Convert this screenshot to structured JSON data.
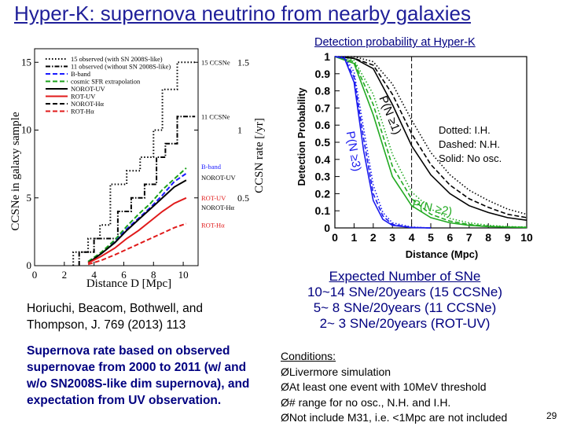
{
  "slide": {
    "title": "Hyper-K: supernova neutrino from nearby galaxies",
    "detection_caption": "Detection probability at Hyper-K",
    "expected": {
      "heading": "Expected Number of SNe",
      "lines": [
        "10~14 SNe/20years (15 CCSNe)",
        "5~ 8 SNe/20years (11 CCSNe)",
        "2~ 3 SNe/20years (ROT-UV)"
      ]
    },
    "reference": "Horiuchi,  Beacom, Bothwell, and Thompson, J. 769 (2013) 113",
    "rate_text": "Supernova rate based on observed supernovae from 2000 to 2011 (w/ and w/o SN2008S-like dim supernova), and expectation from UV observation.",
    "conditions": {
      "heading": "Conditions:",
      "bullet": "Ø",
      "items": [
        "Livermore simulation",
        "At least one event with 10MeV threshold",
        "# range for no osc., N.H. and I.H.",
        "Not include M31, i.e. <1Mpc are not included"
      ]
    },
    "page_number": "29"
  },
  "chart_data": [
    {
      "type": "line",
      "xlabel": "Distance D [Mpc]",
      "ylabel": "CCSNe in galaxy sample",
      "ylabel_right": "CCSN rate [/yr]",
      "xlim": [
        0,
        11
      ],
      "ylim": [
        0,
        16
      ],
      "x_ticks": [
        "0",
        "2",
        "4",
        "6",
        "8",
        "10"
      ],
      "y_ticks": [
        "0",
        "5",
        "10",
        "15"
      ],
      "y2_ticks": [
        "0.5",
        "1",
        "1.5"
      ],
      "legend": [
        "15 observed (with SN 2008S-like)",
        "11 observed (without SN 2008S-like)",
        "B-band",
        "cosmic SFR extrapolation",
        "NOROT-UV",
        "ROT-UV",
        "NOROT-Hα",
        "ROT-Hα"
      ],
      "annotations": [
        "15 CCSNe",
        "11 CCSNe",
        "B-band",
        "NOROT-UV",
        "ROT-UV",
        "NOROT-Hα",
        "ROT-Hα"
      ],
      "series": [
        {
          "name": "15 observed (with SN 2008S-like)",
          "color": "#000000",
          "style": "dotted",
          "points": [
            [
              2.6,
              0
            ],
            [
              2.6,
              1
            ],
            [
              3.6,
              1
            ],
            [
              3.6,
              2
            ],
            [
              4.4,
              2
            ],
            [
              4.4,
              3
            ],
            [
              5.1,
              3
            ],
            [
              5.1,
              6
            ],
            [
              6.2,
              6
            ],
            [
              6.2,
              7
            ],
            [
              7.1,
              7
            ],
            [
              7.1,
              8
            ],
            [
              8.0,
              8
            ],
            [
              8.0,
              10
            ],
            [
              8.6,
              10
            ],
            [
              8.6,
              13
            ],
            [
              9.6,
              13
            ],
            [
              9.6,
              15
            ],
            [
              10.8,
              15
            ]
          ]
        },
        {
          "name": "11 observed (without SN 2008S-like)",
          "color": "#000000",
          "style": "dashdot",
          "points": [
            [
              3.0,
              0
            ],
            [
              3.0,
              1
            ],
            [
              4.0,
              1
            ],
            [
              4.0,
              2
            ],
            [
              5.6,
              2
            ],
            [
              5.6,
              4
            ],
            [
              6.5,
              4
            ],
            [
              6.5,
              5
            ],
            [
              7.4,
              5
            ],
            [
              7.4,
              6
            ],
            [
              8.2,
              6
            ],
            [
              8.2,
              8
            ],
            [
              8.8,
              8
            ],
            [
              8.8,
              9
            ],
            [
              9.6,
              9
            ],
            [
              9.6,
              11
            ],
            [
              10.8,
              11
            ]
          ]
        },
        {
          "name": "B-band",
          "color": "#1a1aff",
          "style": "dashed",
          "points": [
            [
              3.6,
              0.3
            ],
            [
              4.5,
              0.9
            ],
            [
              5.4,
              1.8
            ],
            [
              6.2,
              2.7
            ],
            [
              7.0,
              3.5
            ],
            [
              7.8,
              4.3
            ],
            [
              8.6,
              5.2
            ],
            [
              9.4,
              6.2
            ],
            [
              10.2,
              6.8
            ]
          ]
        },
        {
          "name": "cosmic SFR extrapolation",
          "color": "#1aa01a",
          "style": "dashed",
          "points": [
            [
              3.6,
              0.3
            ],
            [
              4.5,
              1.0
            ],
            [
              5.4,
              1.9
            ],
            [
              6.2,
              2.9
            ],
            [
              7.0,
              3.8
            ],
            [
              7.8,
              4.6
            ],
            [
              8.6,
              5.6
            ],
            [
              9.4,
              6.4
            ],
            [
              10.2,
              7.2
            ]
          ]
        },
        {
          "name": "NOROT-UV",
          "color": "#000000",
          "style": "solid",
          "points": [
            [
              3.6,
              0.2
            ],
            [
              4.5,
              0.9
            ],
            [
              5.4,
              1.7
            ],
            [
              6.2,
              2.6
            ],
            [
              7.0,
              3.4
            ],
            [
              7.8,
              4.2
            ],
            [
              8.6,
              5.0
            ],
            [
              9.4,
              5.8
            ],
            [
              10.2,
              6.3
            ]
          ]
        },
        {
          "name": "ROT-UV",
          "color": "#e01a1a",
          "style": "solid",
          "points": [
            [
              3.6,
              0.2
            ],
            [
              4.5,
              0.7
            ],
            [
              5.4,
              1.3
            ],
            [
              6.2,
              2.0
            ],
            [
              7.0,
              2.6
            ],
            [
              7.8,
              3.3
            ],
            [
              8.6,
              4.0
            ],
            [
              9.4,
              4.6
            ],
            [
              10.2,
              5.0
            ]
          ]
        },
        {
          "name": "ROT-Hα",
          "color": "#e01a1a",
          "style": "dashed",
          "points": [
            [
              3.6,
              0.1
            ],
            [
              4.5,
              0.4
            ],
            [
              5.4,
              0.8
            ],
            [
              6.2,
              1.2
            ],
            [
              7.0,
              1.6
            ],
            [
              7.8,
              2.0
            ],
            [
              8.6,
              2.4
            ],
            [
              9.4,
              2.8
            ],
            [
              10.2,
              3.1
            ]
          ]
        }
      ]
    },
    {
      "type": "line",
      "xlabel": "Distance (Mpc)",
      "ylabel": "Detection Probability",
      "xlim": [
        0,
        10
      ],
      "ylim": [
        0,
        1
      ],
      "x_ticks": [
        "0",
        "1",
        "2",
        "3",
        "4",
        "5",
        "6",
        "7",
        "8",
        "9",
        "10"
      ],
      "y_ticks": [
        "0",
        "0.1",
        "0.2",
        "0.3",
        "0.4",
        "0.5",
        "0.6",
        "0.7",
        "0.8",
        "0.9",
        "1"
      ],
      "annotations": [
        "P(N ≥1)",
        "P(N ≥3)",
        "P(N ≥2)"
      ],
      "legend_text": [
        "Dotted: I.H.",
        "Dashed: N.H.",
        "Solid: No osc."
      ],
      "reference_line_x": 4,
      "series": [
        {
          "name": "P(N≥1) solid",
          "color": "#000000",
          "style": "solid",
          "points": [
            [
              0,
              1
            ],
            [
              1,
              0.99
            ],
            [
              2,
              0.93
            ],
            [
              3,
              0.72
            ],
            [
              4,
              0.48
            ],
            [
              5,
              0.31
            ],
            [
              6,
              0.2
            ],
            [
              7,
              0.13
            ],
            [
              8,
              0.09
            ],
            [
              9,
              0.06
            ],
            [
              10,
              0.045
            ]
          ]
        },
        {
          "name": "P(N≥1) dashed",
          "color": "#000000",
          "style": "dashed",
          "points": [
            [
              0,
              1
            ],
            [
              1,
              0.99
            ],
            [
              2,
              0.95
            ],
            [
              3,
              0.78
            ],
            [
              4,
              0.55
            ],
            [
              5,
              0.37
            ],
            [
              6,
              0.25
            ],
            [
              7,
              0.17
            ],
            [
              8,
              0.12
            ],
            [
              9,
              0.08
            ],
            [
              10,
              0.06
            ]
          ]
        },
        {
          "name": "P(N≥1) dotted",
          "color": "#000000",
          "style": "dotted",
          "points": [
            [
              0,
              1
            ],
            [
              1,
              1
            ],
            [
              2,
              0.97
            ],
            [
              3,
              0.84
            ],
            [
              4,
              0.63
            ],
            [
              5,
              0.44
            ],
            [
              6,
              0.31
            ],
            [
              7,
              0.22
            ],
            [
              8,
              0.16
            ],
            [
              9,
              0.11
            ],
            [
              10,
              0.08
            ]
          ]
        },
        {
          "name": "P(N≥2) solid",
          "color": "#22aa22",
          "style": "solid",
          "points": [
            [
              0,
              1
            ],
            [
              1,
              0.96
            ],
            [
              2,
              0.66
            ],
            [
              3,
              0.3
            ],
            [
              4,
              0.13
            ],
            [
              5,
              0.06
            ],
            [
              6,
              0.03
            ],
            [
              7,
              0.015
            ],
            [
              8,
              0.008
            ],
            [
              9,
              0.005
            ],
            [
              10,
              0.003
            ]
          ]
        },
        {
          "name": "P(N≥2) dashed",
          "color": "#22aa22",
          "style": "dashed",
          "points": [
            [
              0,
              1
            ],
            [
              1,
              0.97
            ],
            [
              2,
              0.72
            ],
            [
              3,
              0.36
            ],
            [
              4,
              0.17
            ],
            [
              5,
              0.08
            ],
            [
              6,
              0.04
            ],
            [
              7,
              0.02
            ],
            [
              8,
              0.01
            ],
            [
              9,
              0.006
            ],
            [
              10,
              0.004
            ]
          ]
        },
        {
          "name": "P(N≥2) dotted",
          "color": "#22aa22",
          "style": "dotted",
          "points": [
            [
              0,
              1
            ],
            [
              1,
              0.98
            ],
            [
              2,
              0.78
            ],
            [
              3,
              0.43
            ],
            [
              4,
              0.21
            ],
            [
              5,
              0.11
            ],
            [
              6,
              0.055
            ],
            [
              7,
              0.03
            ],
            [
              8,
              0.015
            ],
            [
              9,
              0.008
            ],
            [
              10,
              0.005
            ]
          ]
        },
        {
          "name": "P(N≥3) solid",
          "color": "#1a1aee",
          "style": "solid",
          "points": [
            [
              0,
              1
            ],
            [
              0.5,
              0.99
            ],
            [
              1,
              0.85
            ],
            [
              1.5,
              0.45
            ],
            [
              2,
              0.16
            ],
            [
              2.5,
              0.05
            ],
            [
              3,
              0.015
            ],
            [
              4,
              0.002
            ],
            [
              5,
              0
            ]
          ]
        },
        {
          "name": "P(N≥3) dashed",
          "color": "#1a1aee",
          "style": "dashed",
          "points": [
            [
              0,
              1
            ],
            [
              0.5,
              0.99
            ],
            [
              1,
              0.88
            ],
            [
              1.5,
              0.52
            ],
            [
              2,
              0.2
            ],
            [
              2.5,
              0.07
            ],
            [
              3,
              0.02
            ],
            [
              4,
              0.003
            ],
            [
              5,
              0
            ]
          ]
        },
        {
          "name": "P(N≥3) dotted",
          "color": "#1a1aee",
          "style": "dotted",
          "points": [
            [
              0,
              1
            ],
            [
              0.5,
              1
            ],
            [
              1,
              0.91
            ],
            [
              1.5,
              0.58
            ],
            [
              2,
              0.25
            ],
            [
              2.5,
              0.09
            ],
            [
              3,
              0.03
            ],
            [
              4,
              0.005
            ],
            [
              5,
              0
            ]
          ]
        }
      ]
    }
  ]
}
